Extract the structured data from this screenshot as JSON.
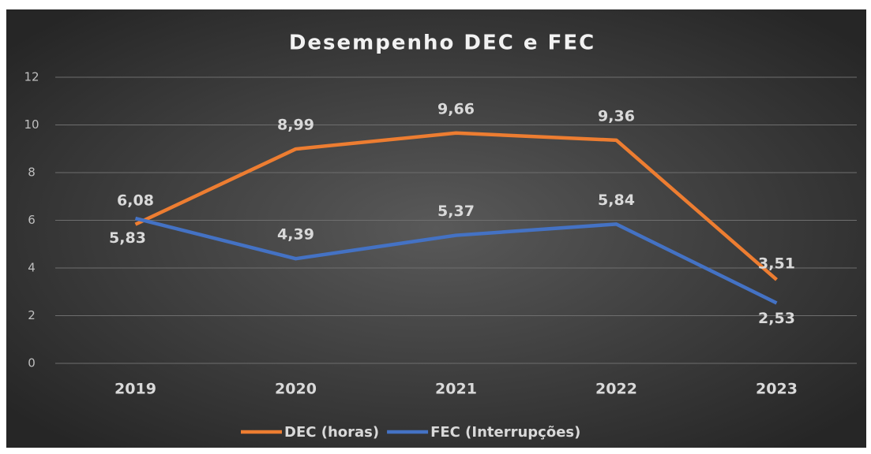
{
  "chart_data": {
    "type": "line",
    "title": "Desempenho DEC e FEC",
    "categories": [
      "2019",
      "2020",
      "2021",
      "2022",
      "2023"
    ],
    "series": [
      {
        "name": "DEC (horas)",
        "color": "#ed7d31",
        "values": [
          5.83,
          8.99,
          9.66,
          9.36,
          3.51
        ],
        "value_labels": [
          "5,83",
          "8,99",
          "9,66",
          "9,36",
          "3,51"
        ]
      },
      {
        "name": "FEC (Interrupções)",
        "color": "#4472c4",
        "values": [
          6.08,
          4.39,
          5.37,
          5.84,
          2.53
        ],
        "value_labels": [
          "6,08",
          "4,39",
          "5,37",
          "5,84",
          "2,53"
        ]
      }
    ],
    "ylim": [
      0,
      12
    ],
    "yticks": [
      0,
      2,
      4,
      6,
      8,
      10,
      12
    ],
    "grid": true,
    "legend": "bottom"
  }
}
